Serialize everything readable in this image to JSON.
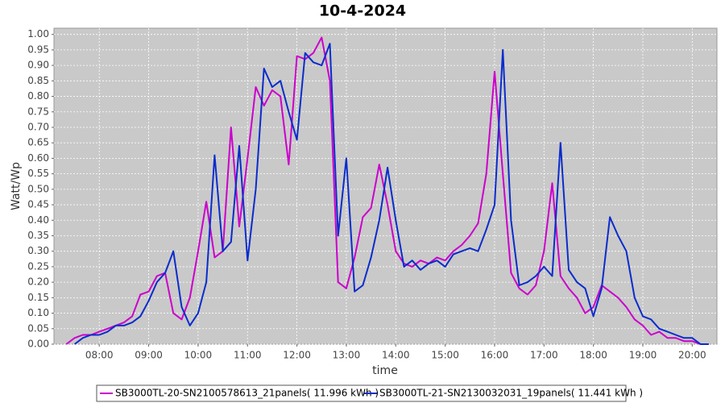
{
  "chart_data": {
    "type": "line",
    "title": "10-4-2024",
    "x_label": "time",
    "y_label": "Watt/Wp",
    "x": [
      "07:20",
      "07:30",
      "07:40",
      "07:50",
      "08:00",
      "08:10",
      "08:20",
      "08:30",
      "08:40",
      "08:50",
      "09:00",
      "09:10",
      "09:20",
      "09:30",
      "09:40",
      "09:50",
      "10:00",
      "10:10",
      "10:20",
      "10:30",
      "10:40",
      "10:50",
      "11:00",
      "11:10",
      "11:20",
      "11:30",
      "11:40",
      "11:50",
      "12:00",
      "12:10",
      "12:20",
      "12:30",
      "12:40",
      "12:50",
      "13:00",
      "13:10",
      "13:20",
      "13:30",
      "13:40",
      "13:50",
      "14:00",
      "14:10",
      "14:20",
      "14:30",
      "14:40",
      "14:50",
      "15:00",
      "15:10",
      "15:20",
      "15:30",
      "15:40",
      "15:50",
      "16:00",
      "16:10",
      "16:20",
      "16:30",
      "16:40",
      "16:50",
      "17:00",
      "17:10",
      "17:20",
      "17:30",
      "17:40",
      "17:50",
      "18:00",
      "18:10",
      "18:20",
      "18:30",
      "18:40",
      "18:50",
      "19:00",
      "19:10",
      "19:20",
      "19:30",
      "19:40",
      "19:50",
      "20:00",
      "20:10",
      "20:20"
    ],
    "series": [
      {
        "name": "SB3000TL-20-SN2100578613_21panels( 11.996 kWh )",
        "color": "#cc00cc",
        "values": [
          0.0,
          0.02,
          0.03,
          0.03,
          0.04,
          0.05,
          0.06,
          0.07,
          0.09,
          0.16,
          0.17,
          0.22,
          0.23,
          0.1,
          0.08,
          0.15,
          0.3,
          0.46,
          0.28,
          0.3,
          0.7,
          0.38,
          0.6,
          0.83,
          0.77,
          0.82,
          0.8,
          0.58,
          0.93,
          0.92,
          0.94,
          0.99,
          0.85,
          0.2,
          0.18,
          0.28,
          0.41,
          0.44,
          0.58,
          0.45,
          0.3,
          0.26,
          0.25,
          0.27,
          0.26,
          0.28,
          0.27,
          0.3,
          0.32,
          0.35,
          0.39,
          0.55,
          0.88,
          0.55,
          0.23,
          0.18,
          0.16,
          0.19,
          0.3,
          0.52,
          0.22,
          0.18,
          0.15,
          0.1,
          0.12,
          0.19,
          0.17,
          0.15,
          0.12,
          0.08,
          0.06,
          0.03,
          0.04,
          0.02,
          0.02,
          0.01,
          0.01,
          0.0,
          0.0
        ]
      },
      {
        "name": "SB3000TL-21-SN2130032031_19panels( 11.441 kWh )",
        "color": "#0a2ccc",
        "values": [
          null,
          0.0,
          0.02,
          0.03,
          0.03,
          0.04,
          0.06,
          0.06,
          0.07,
          0.09,
          0.14,
          0.2,
          0.23,
          0.3,
          0.12,
          0.06,
          0.1,
          0.2,
          0.61,
          0.3,
          0.33,
          0.64,
          0.27,
          0.5,
          0.89,
          0.83,
          0.85,
          0.75,
          0.66,
          0.94,
          0.91,
          0.9,
          0.97,
          0.35,
          0.6,
          0.17,
          0.19,
          0.28,
          0.4,
          0.57,
          0.4,
          0.25,
          0.27,
          0.24,
          0.26,
          0.27,
          0.25,
          0.29,
          0.3,
          0.31,
          0.3,
          0.37,
          0.45,
          0.95,
          0.4,
          0.19,
          0.2,
          0.22,
          0.25,
          0.22,
          0.65,
          0.24,
          0.2,
          0.18,
          0.09,
          0.18,
          0.41,
          0.35,
          0.3,
          0.15,
          0.09,
          0.08,
          0.05,
          0.04,
          0.03,
          0.02,
          0.02,
          0.0,
          0.0
        ]
      }
    ],
    "xlim": [
      "07:05",
      "20:30"
    ],
    "xticks": [
      "08:00",
      "09:00",
      "10:00",
      "11:00",
      "12:00",
      "13:00",
      "14:00",
      "15:00",
      "16:00",
      "17:00",
      "18:00",
      "19:00",
      "20:00"
    ],
    "ylim": [
      0,
      1.02
    ],
    "yticks": [
      {
        "value": 0,
        "label": "0.00"
      },
      {
        "value": 0.05,
        "label": "0.05"
      },
      {
        "value": 0.1,
        "label": "0.10"
      },
      {
        "value": 0.15,
        "label": "0.15"
      },
      {
        "value": 0.2,
        "label": "0.20"
      },
      {
        "value": 0.25,
        "label": "0.25"
      },
      {
        "value": 0.3,
        "label": "0.30"
      },
      {
        "value": 0.35,
        "label": "0.35"
      },
      {
        "value": 0.4,
        "label": "0.40"
      },
      {
        "value": 0.45,
        "label": "0.45"
      },
      {
        "value": 0.5,
        "label": "0.50"
      },
      {
        "value": 0.55,
        "label": "0.55"
      },
      {
        "value": 0.6,
        "label": "0.60"
      },
      {
        "value": 0.65,
        "label": "0.65"
      },
      {
        "value": 0.7,
        "label": "0.70"
      },
      {
        "value": 0.75,
        "label": "0.75"
      },
      {
        "value": 0.8,
        "label": "0.80"
      },
      {
        "value": 0.85,
        "label": "0.85"
      },
      {
        "value": 0.9,
        "label": "0.90"
      },
      {
        "value": 0.95,
        "label": "0.95"
      },
      {
        "value": 1,
        "label": "1.00"
      }
    ],
    "grid": true
  }
}
